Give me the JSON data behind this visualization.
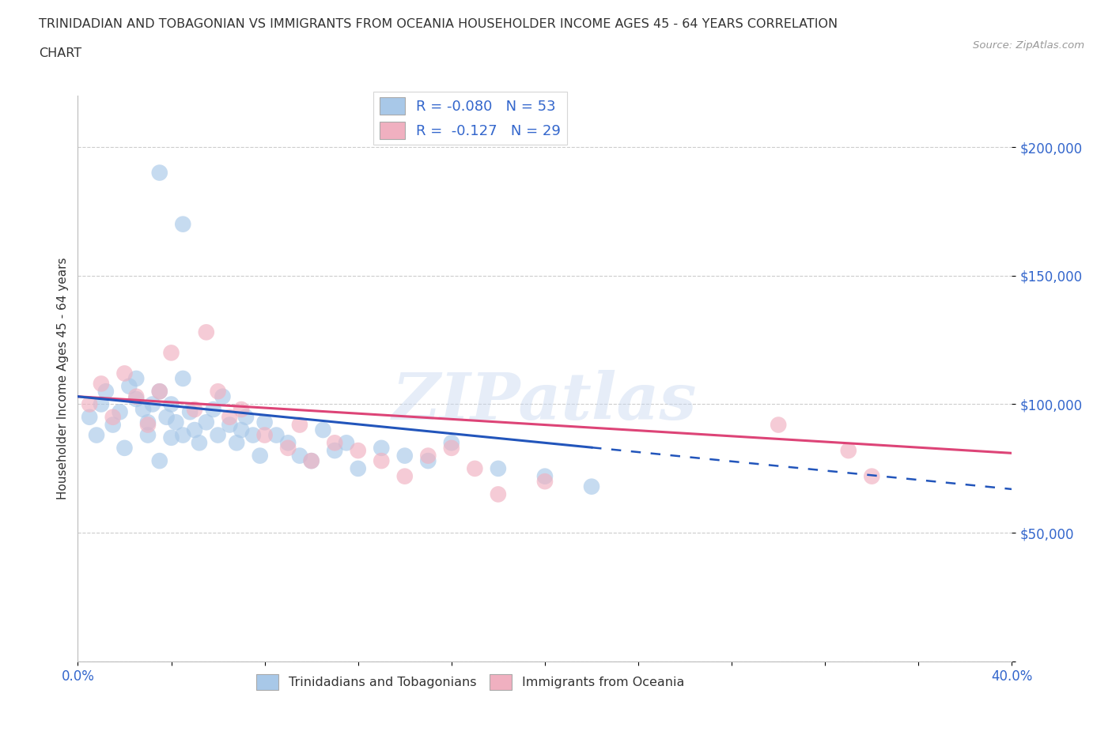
{
  "title_line1": "TRINIDADIAN AND TOBAGONIAN VS IMMIGRANTS FROM OCEANIA HOUSEHOLDER INCOME AGES 45 - 64 YEARS CORRELATION",
  "title_line2": "CHART",
  "source": "Source: ZipAtlas.com",
  "ylabel": "Householder Income Ages 45 - 64 years",
  "xlim": [
    0.0,
    0.4
  ],
  "ylim": [
    0,
    220000
  ],
  "yticks": [
    0,
    50000,
    100000,
    150000,
    200000
  ],
  "ytick_labels": [
    "",
    "$50,000",
    "$100,000",
    "$150,000",
    "$200,000"
  ],
  "xticks": [
    0.0,
    0.04,
    0.08,
    0.12,
    0.16,
    0.2,
    0.24,
    0.28,
    0.32,
    0.36,
    0.4
  ],
  "xtick_labels": [
    "0.0%",
    "",
    "",
    "",
    "",
    "",
    "",
    "",
    "",
    "",
    "40.0%"
  ],
  "blue_color": "#a8c8e8",
  "pink_color": "#f0b0c0",
  "blue_line_color": "#2255bb",
  "pink_line_color": "#dd4477",
  "R_blue": -0.08,
  "N_blue": 53,
  "R_pink": -0.127,
  "N_pink": 29,
  "watermark": "ZIPatlas",
  "legend_label_blue": "Trinidadians and Tobagonians",
  "legend_label_pink": "Immigrants from Oceania",
  "blue_scatter_x": [
    0.005,
    0.008,
    0.01,
    0.012,
    0.015,
    0.018,
    0.02,
    0.022,
    0.025,
    0.025,
    0.028,
    0.03,
    0.03,
    0.032,
    0.035,
    0.035,
    0.038,
    0.04,
    0.04,
    0.042,
    0.045,
    0.045,
    0.048,
    0.05,
    0.052,
    0.055,
    0.058,
    0.06,
    0.062,
    0.065,
    0.068,
    0.07,
    0.072,
    0.075,
    0.078,
    0.08,
    0.085,
    0.09,
    0.095,
    0.1,
    0.105,
    0.11,
    0.115,
    0.12,
    0.13,
    0.14,
    0.15,
    0.16,
    0.18,
    0.2,
    0.22,
    0.035,
    0.045
  ],
  "blue_scatter_y": [
    95000,
    88000,
    100000,
    105000,
    92000,
    97000,
    83000,
    107000,
    110000,
    102000,
    98000,
    93000,
    88000,
    100000,
    105000,
    78000,
    95000,
    87000,
    100000,
    93000,
    110000,
    88000,
    97000,
    90000,
    85000,
    93000,
    98000,
    88000,
    103000,
    92000,
    85000,
    90000,
    95000,
    88000,
    80000,
    93000,
    88000,
    85000,
    80000,
    78000,
    90000,
    82000,
    85000,
    75000,
    83000,
    80000,
    78000,
    85000,
    75000,
    72000,
    68000,
    190000,
    170000
  ],
  "pink_scatter_x": [
    0.005,
    0.01,
    0.015,
    0.02,
    0.025,
    0.03,
    0.035,
    0.04,
    0.05,
    0.055,
    0.06,
    0.065,
    0.07,
    0.08,
    0.09,
    0.095,
    0.1,
    0.11,
    0.12,
    0.13,
    0.14,
    0.15,
    0.16,
    0.17,
    0.18,
    0.2,
    0.3,
    0.33,
    0.34
  ],
  "pink_scatter_y": [
    100000,
    108000,
    95000,
    112000,
    103000,
    92000,
    105000,
    120000,
    98000,
    128000,
    105000,
    95000,
    98000,
    88000,
    83000,
    92000,
    78000,
    85000,
    82000,
    78000,
    72000,
    80000,
    83000,
    75000,
    65000,
    70000,
    92000,
    82000,
    72000
  ],
  "blue_line_x0": 0.0,
  "blue_line_x_solid_end": 0.22,
  "blue_line_x_dash_end": 0.4,
  "blue_line_y0": 103000,
  "blue_line_slope": -90000,
  "pink_line_x0": 0.0,
  "pink_line_x_solid_end": 0.4,
  "pink_line_y0": 103000,
  "pink_line_slope": -55000
}
